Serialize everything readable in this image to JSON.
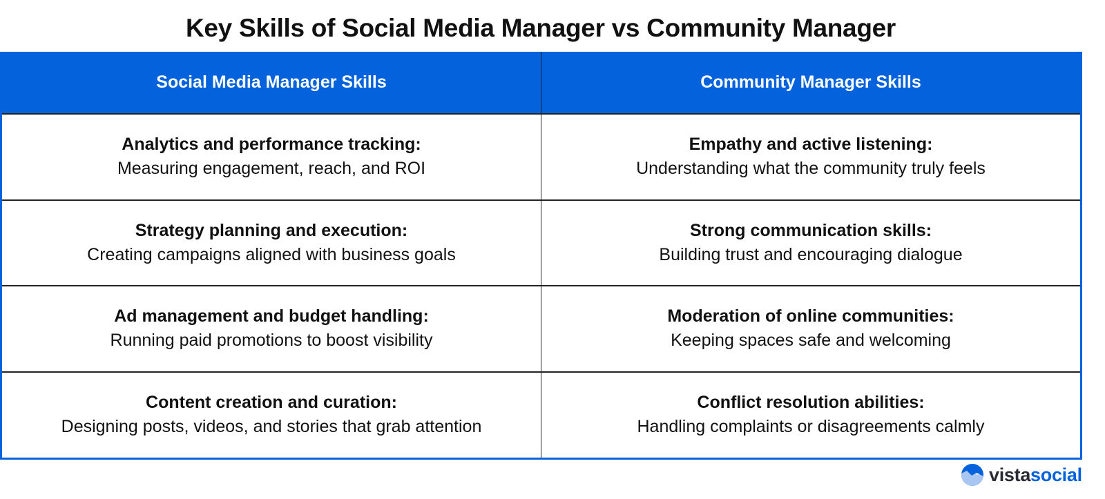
{
  "title": "Key Skills of Social Media Manager vs Community Manager",
  "headers": [
    "Social Media Manager Skills",
    "Community Manager Skills"
  ],
  "rows": [
    [
      {
        "skill": "Analytics and performance tracking:",
        "desc": "Measuring engagement, reach, and ROI"
      },
      {
        "skill": "Empathy and active listening:",
        "desc": "Understanding what the community truly feels"
      }
    ],
    [
      {
        "skill": "Strategy planning and execution:",
        "desc": "Creating campaigns aligned with business goals"
      },
      {
        "skill": "Strong communication skills:",
        "desc": "Building trust and encouraging dialogue"
      }
    ],
    [
      {
        "skill": "Ad management and budget handling:",
        "desc": "Running paid promotions to boost visibility"
      },
      {
        "skill": "Moderation of online communities:",
        "desc": "Keeping spaces safe and welcoming"
      }
    ],
    [
      {
        "skill": "Content creation and curation:",
        "desc": "Designing posts, videos, and stories that grab attention"
      },
      {
        "skill": "Conflict resolution abilities:",
        "desc": "Handling complaints or disagreements calmly"
      }
    ]
  ],
  "logo": {
    "part1": "vista",
    "part2": "social",
    "icon": "mountain-circle-icon"
  },
  "colors": {
    "accent": "#0462dd"
  }
}
